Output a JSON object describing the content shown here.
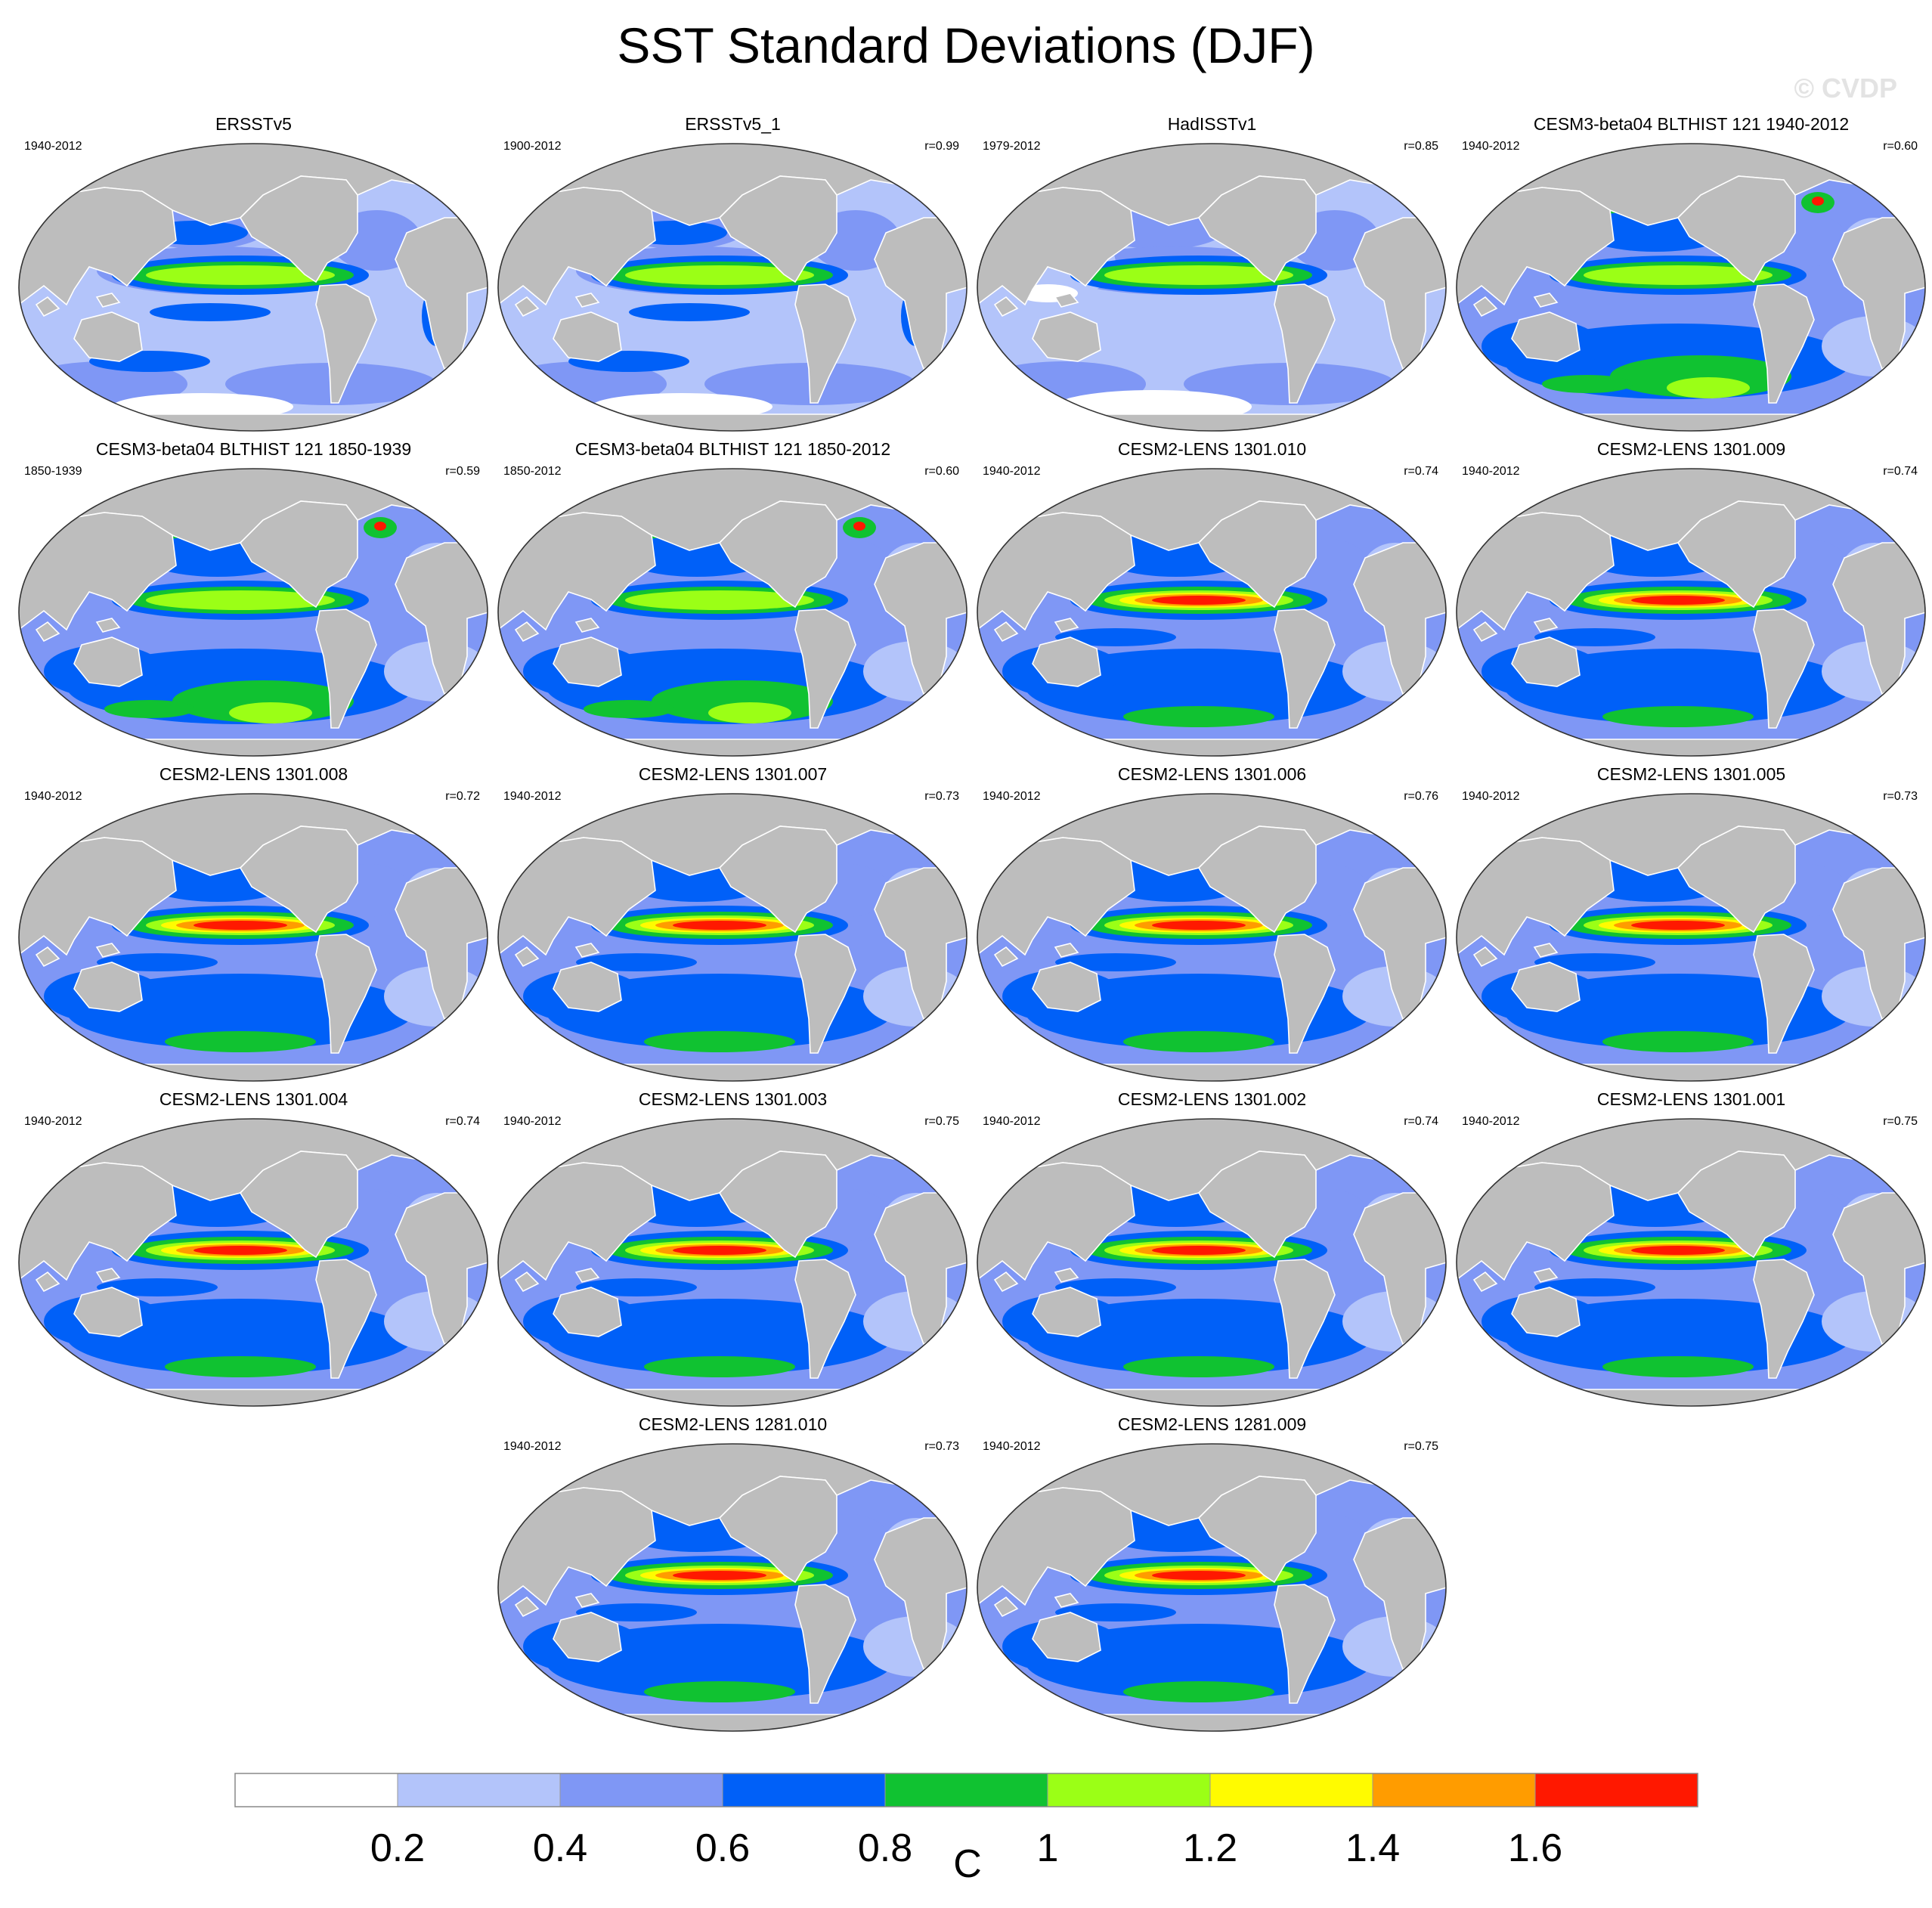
{
  "title": "SST Standard Deviations (DJF)",
  "watermark": "© CVDP",
  "panels": [
    {
      "title": "ERSSTv5",
      "years": "1940-2012",
      "r": "",
      "enso": 1.0,
      "style": "obs"
    },
    {
      "title": "ERSSTv5_1",
      "years": "1900-2012",
      "r": "r=0.99",
      "enso": 1.0,
      "style": "obs"
    },
    {
      "title": "HadISSTv1",
      "years": "1979-2012",
      "r": "r=0.85",
      "enso": 1.1,
      "style": "obs-low"
    },
    {
      "title": "CESM3-beta04 BLTHIST 121 1940-2012",
      "years": "1940-2012",
      "r": "r=0.60",
      "enso": 1.0,
      "style": "cesm3"
    },
    {
      "title": "CESM3-beta04 BLTHIST 121 1850-1939",
      "years": "1850-1939",
      "r": "r=0.59",
      "enso": 1.0,
      "style": "cesm3"
    },
    {
      "title": "CESM3-beta04 BLTHIST 121 1850-2012",
      "years": "1850-2012",
      "r": "r=0.60",
      "enso": 1.0,
      "style": "cesm3"
    },
    {
      "title": "CESM2-LENS 1301.010",
      "years": "1940-2012",
      "r": "r=0.74",
      "enso": 1.7,
      "style": "cesm2"
    },
    {
      "title": "CESM2-LENS 1301.009",
      "years": "1940-2012",
      "r": "r=0.74",
      "enso": 1.7,
      "style": "cesm2"
    },
    {
      "title": "CESM2-LENS 1301.008",
      "years": "1940-2012",
      "r": "r=0.72",
      "enso": 1.7,
      "style": "cesm2"
    },
    {
      "title": "CESM2-LENS 1301.007",
      "years": "1940-2012",
      "r": "r=0.73",
      "enso": 1.8,
      "style": "cesm2"
    },
    {
      "title": "CESM2-LENS 1301.006",
      "years": "1940-2012",
      "r": "r=0.76",
      "enso": 1.7,
      "style": "cesm2"
    },
    {
      "title": "CESM2-LENS 1301.005",
      "years": "1940-2012",
      "r": "r=0.73",
      "enso": 1.7,
      "style": "cesm2"
    },
    {
      "title": "CESM2-LENS 1301.004",
      "years": "1940-2012",
      "r": "r=0.74",
      "enso": 1.7,
      "style": "cesm2"
    },
    {
      "title": "CESM2-LENS 1301.003",
      "years": "1940-2012",
      "r": "r=0.75",
      "enso": 1.7,
      "style": "cesm2"
    },
    {
      "title": "CESM2-LENS 1301.002",
      "years": "1940-2012",
      "r": "r=0.74",
      "enso": 1.7,
      "style": "cesm2"
    },
    {
      "title": "CESM2-LENS 1301.001",
      "years": "1940-2012",
      "r": "r=0.75",
      "enso": 1.7,
      "style": "cesm2"
    },
    {
      "title": "CESM2-LENS 1281.010",
      "years": "1940-2012",
      "r": "r=0.73",
      "enso": 1.7,
      "style": "cesm2"
    },
    {
      "title": "CESM2-LENS 1281.009",
      "years": "1940-2012",
      "r": "r=0.75",
      "enso": 1.7,
      "style": "cesm2"
    }
  ],
  "colorbar": {
    "unit": "C",
    "labels": [
      "0.2",
      "0.4",
      "0.6",
      "0.8",
      "1",
      "1.2",
      "1.4",
      "1.6"
    ],
    "colors": [
      "#ffffff",
      "#b3c4fa",
      "#7f97f5",
      "#0060f8",
      "#10c231",
      "#9bff16",
      "#fffb00",
      "#ff9c00",
      "#ff1800"
    ]
  },
  "colors": {
    "land": "#bdbdbd",
    "coast": "#ffffff",
    "border": "#333333"
  }
}
